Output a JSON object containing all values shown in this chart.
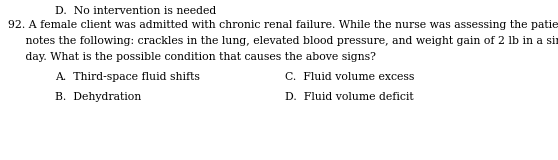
{
  "background_color": "#ffffff",
  "top_text": "D.  No intervention is needed",
  "question_line1": "92. A female client was admitted with chronic renal failure. While the nurse was assessing the patient, he",
  "question_line2": "     notes the following: crackles in the lung, elevated blood pressure, and weight gain of 2 lb in a single",
  "question_line3": "     day. What is the possible condition that causes the above signs?",
  "opt_A_label": "A.",
  "opt_A_text": "Third-space fluid shifts",
  "opt_C_label": "C.",
  "opt_C_text": "Fluid volume excess",
  "opt_B_label": "B.",
  "opt_B_text": "Dehydration",
  "opt_D_label": "D.",
  "opt_D_text": "Fluid volume deficit",
  "font_size": 7.8,
  "font_family": "DejaVu Serif",
  "text_color": "#000000",
  "fig_width": 5.58,
  "fig_height": 1.6,
  "dpi": 100
}
